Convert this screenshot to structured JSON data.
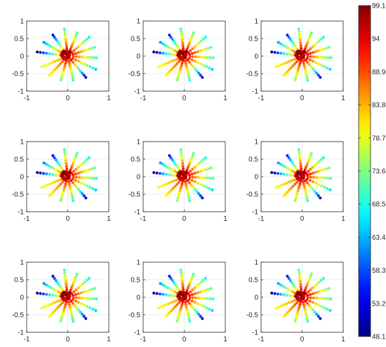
{
  "chart_data": {
    "type": "scatter",
    "layout": {
      "rows": 3,
      "cols": 3
    },
    "axes": {
      "xlim": [
        -1,
        1
      ],
      "ylim": [
        -1,
        1
      ],
      "xticks": [
        -1,
        0,
        1
      ],
      "yticks": [
        -1,
        -0.5,
        0,
        0.5,
        1
      ],
      "xtick_labels": [
        "-1",
        "0",
        "1"
      ],
      "ytick_labels": [
        "-1",
        "-0.5",
        "0",
        "0.5",
        "1"
      ],
      "grid": true,
      "box": true
    },
    "colorbar": {
      "position": "right",
      "colormap": "jet",
      "min": 48.1,
      "max": 99.1,
      "tick_values": [
        48.1,
        53.2,
        58.3,
        63.4,
        68.5,
        73.6,
        78.7,
        83.8,
        88.9,
        94,
        99.1
      ],
      "tick_labels": [
        "48.1",
        "53.2",
        "58.3",
        "63.4",
        "68.5",
        "73.6",
        "78.7",
        "83.8",
        "88.9",
        "94",
        "99.1"
      ]
    },
    "spokes": [
      {
        "angle_deg": 171,
        "r_max": 0.75,
        "v_outer": 48.5,
        "v_inner": 86
      },
      {
        "angle_deg": 146,
        "r_max": 0.7,
        "v_outer": 62,
        "v_inner": 90
      },
      {
        "angle_deg": 121,
        "r_max": 0.7,
        "v_outer": 55,
        "v_inner": 88
      },
      {
        "angle_deg": 96,
        "r_max": 0.78,
        "v_outer": 71,
        "v_inner": 95
      },
      {
        "angle_deg": 71,
        "r_max": 0.7,
        "v_outer": 72,
        "v_inner": 94
      },
      {
        "angle_deg": 46,
        "r_max": 0.75,
        "v_outer": 68,
        "v_inner": 92
      },
      {
        "angle_deg": 21,
        "r_max": 0.7,
        "v_outer": 72,
        "v_inner": 93
      },
      {
        "angle_deg": -4,
        "r_max": 0.7,
        "v_outer": 70,
        "v_inner": 90
      },
      {
        "angle_deg": -29,
        "r_max": 0.78,
        "v_outer": 65,
        "v_inner": 91
      },
      {
        "angle_deg": -54,
        "r_max": 0.75,
        "v_outer": 52,
        "v_inner": 93
      },
      {
        "angle_deg": -79,
        "r_max": 0.7,
        "v_outer": 70,
        "v_inner": 90
      },
      {
        "angle_deg": -104,
        "r_max": 0.7,
        "v_outer": 74,
        "v_inner": 92
      },
      {
        "angle_deg": -129,
        "r_max": 0.7,
        "v_outer": 80,
        "v_inner": 89
      },
      {
        "angle_deg": -154,
        "r_max": 0.7,
        "v_outer": 79,
        "v_inner": 85
      }
    ],
    "points_per_spoke": 9,
    "center_cluster_value": 97
  }
}
